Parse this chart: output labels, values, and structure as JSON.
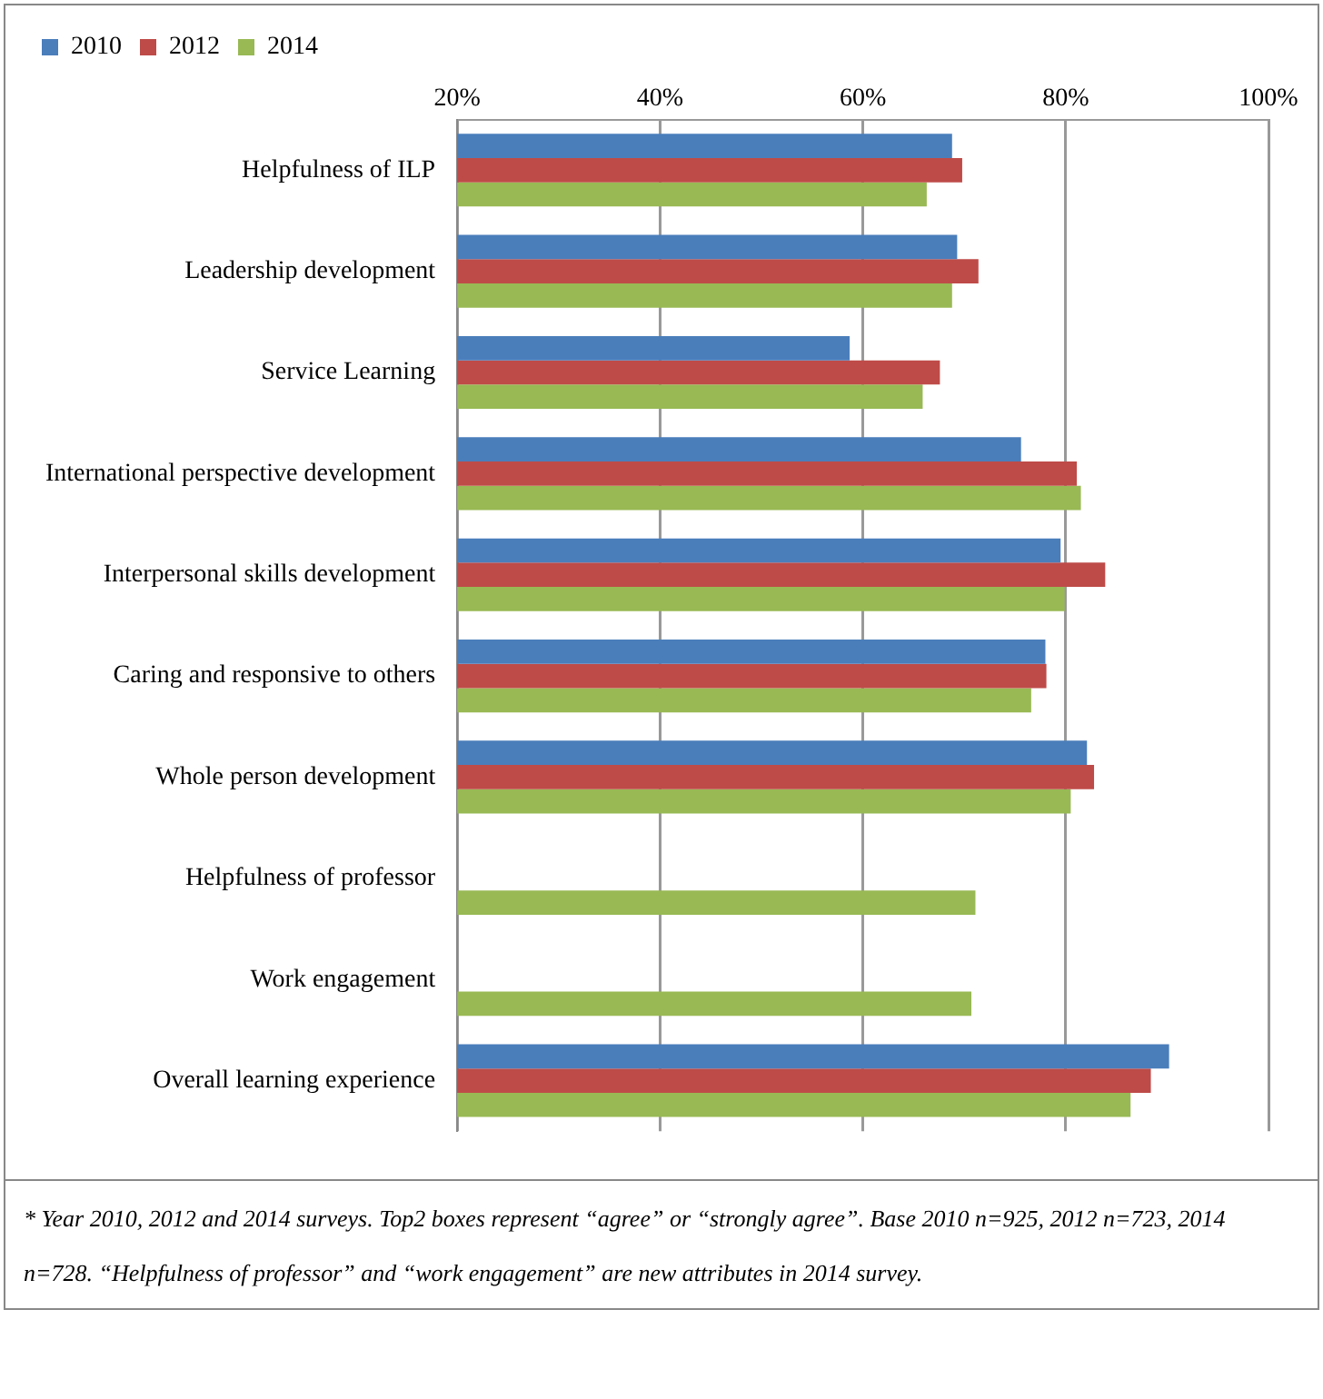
{
  "chart_data": {
    "type": "bar",
    "orientation": "horizontal",
    "categories": [
      "Helpfulness of ILP",
      "Leadership development",
      "Service Learning",
      "International perspective development",
      "Interpersonal skills development",
      "Caring and responsive to others",
      "Whole person development",
      "Helpfulness of professor",
      "Work engagement",
      "Overall learning experience"
    ],
    "series": [
      {
        "name": "2010",
        "color": "#4a7ebb",
        "values": [
          68.8,
          69.3,
          58.7,
          75.6,
          79.5,
          78.0,
          82.1,
          null,
          null,
          90.2
        ]
      },
      {
        "name": "2012",
        "color": "#be4b48",
        "values": [
          69.8,
          71.4,
          67.6,
          81.1,
          83.9,
          78.1,
          82.8,
          null,
          null,
          88.4
        ]
      },
      {
        "name": "2014",
        "color": "#98b954",
        "values": [
          66.3,
          68.8,
          65.9,
          81.5,
          79.9,
          76.6,
          80.5,
          71.1,
          70.7,
          86.4
        ]
      }
    ],
    "xlim": [
      20,
      100
    ],
    "xticks": [
      {
        "value": 20,
        "label": "20%"
      },
      {
        "value": 40,
        "label": "40%"
      },
      {
        "value": 60,
        "label": "60%"
      },
      {
        "value": 80,
        "label": "80%"
      },
      {
        "value": 100,
        "label": "100%"
      }
    ],
    "grid": "x",
    "legend": "top left",
    "annotations": [
      "* Year 2010, 2012 and 2014 surveys. Top2 boxes represent “agree” or “strongly agree”. Base 2010 n=925, 2012 n=723, 2014 n=728. “Helpfulness of professor” and “work engagement” are new attributes in 2014 survey."
    ]
  }
}
